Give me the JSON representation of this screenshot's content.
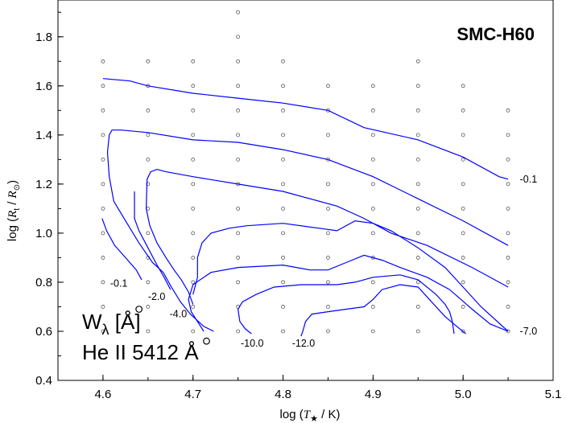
{
  "chart_data": {
    "type": "line",
    "title": "SMC-H60",
    "xlabel_main": "log (",
    "xlabel_var": "T",
    "xlabel_sub": "★",
    "xlabel_tail": " / K)",
    "ylabel_main": "log (",
    "ylabel_var": "R",
    "ylabel_sub": "t",
    "ylabel_mid": " / ",
    "ylabel_var2": "R",
    "ylabel_sub2": "⊙",
    "ylabel_tail": ")",
    "xlim": [
      4.55,
      5.1
    ],
    "ylim": [
      0.4,
      1.95
    ],
    "x_ticks": [
      "4.6",
      "4.7",
      "4.8",
      "4.9",
      "5.0",
      "5.1"
    ],
    "y_ticks": [
      "0.4",
      "0.6",
      "0.8",
      "1.0",
      "1.2",
      "1.4",
      "1.6",
      "1.8"
    ],
    "x_tick_values": [
      4.6,
      4.7,
      4.8,
      4.9,
      5.0,
      5.1
    ],
    "y_tick_values": [
      0.4,
      0.6,
      0.8,
      1.0,
      1.2,
      1.4,
      1.6,
      1.8
    ],
    "line_color": "#0000ff",
    "annotation_line1": "W",
    "annotation_line1_sub": "λ",
    "annotation_line1_tail": " [Å]",
    "annotation_line2": "He II 5412 Å",
    "grid_points": {
      "columns": [
        {
          "x": 4.6,
          "y": [
            0.6,
            0.7,
            0.8,
            0.9,
            1.0,
            1.1,
            1.2,
            1.3,
            1.4,
            1.5,
            1.6,
            1.7
          ]
        },
        {
          "x": 4.65,
          "y": [
            0.6,
            0.7,
            0.8,
            0.9,
            1.0,
            1.1,
            1.2,
            1.3,
            1.4,
            1.5,
            1.6,
            1.7
          ]
        },
        {
          "x": 4.7,
          "y": [
            0.6,
            0.7,
            0.8,
            0.9,
            1.0,
            1.1,
            1.2,
            1.3,
            1.4,
            1.5,
            1.6,
            1.7
          ]
        },
        {
          "x": 4.75,
          "y": [
            0.6,
            0.7,
            0.8,
            0.9,
            1.0,
            1.1,
            1.2,
            1.3,
            1.4,
            1.5,
            1.6,
            1.7,
            1.8,
            1.9
          ]
        },
        {
          "x": 4.8,
          "y": [
            0.6,
            0.7,
            0.8,
            0.9,
            1.0,
            1.1,
            1.2,
            1.3,
            1.4,
            1.5,
            1.6,
            1.7
          ]
        },
        {
          "x": 4.85,
          "y": [
            0.6,
            0.7,
            0.8,
            0.9,
            1.0,
            1.1,
            1.2,
            1.3,
            1.4,
            1.5,
            1.6
          ]
        },
        {
          "x": 4.9,
          "y": [
            0.6,
            0.7,
            0.8,
            0.9,
            1.0,
            1.1,
            1.2,
            1.3,
            1.4,
            1.5,
            1.6
          ]
        },
        {
          "x": 4.95,
          "y": [
            0.6,
            0.7,
            0.8,
            0.9,
            1.0,
            1.1,
            1.2,
            1.3,
            1.4,
            1.5,
            1.6,
            1.7
          ]
        },
        {
          "x": 5.0,
          "y": [
            0.6,
            0.7,
            0.8,
            0.9,
            1.0,
            1.1,
            1.2,
            1.3,
            1.4,
            1.5,
            1.6
          ]
        },
        {
          "x": 5.05,
          "y": [
            0.6,
            0.7,
            0.8,
            0.9,
            1.0,
            1.1,
            1.2,
            1.3,
            1.4,
            1.5
          ]
        }
      ],
      "highlighted": [
        [
          4.64,
          0.69
        ],
        [
          4.715,
          0.56
        ]
      ]
    },
    "series": [
      {
        "label": "-0.1",
        "label_at": [
          5.063,
          1.22
        ],
        "label_anchor": "start",
        "points": [
          [
            4.6,
            1.63
          ],
          [
            4.63,
            1.62
          ],
          [
            4.65,
            1.6
          ],
          [
            4.7,
            1.57
          ],
          [
            4.75,
            1.55
          ],
          [
            4.8,
            1.53
          ],
          [
            4.85,
            1.5
          ],
          [
            4.89,
            1.43
          ],
          [
            4.95,
            1.38
          ],
          [
            5.0,
            1.31
          ],
          [
            5.04,
            1.23
          ],
          [
            5.05,
            1.22
          ]
        ]
      },
      {
        "label": "",
        "points": [
          [
            5.05,
            0.95
          ],
          [
            5.0,
            1.05
          ],
          [
            4.95,
            1.14
          ],
          [
            4.9,
            1.23
          ],
          [
            4.85,
            1.3
          ],
          [
            4.8,
            1.34
          ],
          [
            4.75,
            1.37
          ],
          [
            4.7,
            1.38
          ],
          [
            4.65,
            1.41
          ],
          [
            4.62,
            1.42
          ],
          [
            4.61,
            1.42
          ],
          [
            4.607,
            1.4
          ],
          [
            4.605,
            1.33
          ],
          [
            4.607,
            1.23
          ],
          [
            4.612,
            1.13
          ],
          [
            4.625,
            1.05
          ],
          [
            4.64,
            0.96
          ],
          [
            4.655,
            0.88
          ],
          [
            4.667,
            0.84
          ],
          [
            4.676,
            0.78
          ],
          [
            4.686,
            0.72
          ],
          [
            4.697,
            0.67
          ],
          [
            4.712,
            0.62
          ],
          [
            4.723,
            0.6
          ]
        ]
      },
      {
        "label": "-0.1",
        "label_at": [
          4.608,
          0.795
        ],
        "label_anchor": "start",
        "points": [
          [
            4.599,
            1.06
          ],
          [
            4.604,
            1.01
          ],
          [
            4.613,
            0.95
          ],
          [
            4.625,
            0.9
          ],
          [
            4.637,
            0.85
          ],
          [
            4.643,
            0.81
          ]
        ]
      },
      {
        "label": "-2.0",
        "label_at": [
          4.65,
          0.74
        ],
        "label_anchor": "start",
        "points": [
          [
            4.635,
            1.17
          ],
          [
            4.635,
            1.06
          ],
          [
            4.64,
            1.01
          ],
          [
            4.65,
            0.94
          ],
          [
            4.66,
            0.87
          ],
          [
            4.668,
            0.82
          ],
          [
            4.675,
            0.77
          ]
        ]
      },
      {
        "label": "-4.0",
        "label_at": [
          4.674,
          0.67
        ],
        "label_anchor": "start",
        "points": [
          [
            5.05,
            0.78
          ],
          [
            5.01,
            0.86
          ],
          [
            4.96,
            0.95
          ],
          [
            4.92,
            1.0
          ],
          [
            4.89,
            1.06
          ],
          [
            4.86,
            1.11
          ],
          [
            4.8,
            1.17
          ],
          [
            4.75,
            1.2
          ],
          [
            4.7,
            1.23
          ],
          [
            4.67,
            1.25
          ],
          [
            4.66,
            1.26
          ],
          [
            4.653,
            1.25
          ],
          [
            4.649,
            1.22
          ],
          [
            4.648,
            1.1
          ],
          [
            4.652,
            1.03
          ],
          [
            4.66,
            0.96
          ],
          [
            4.67,
            0.9
          ],
          [
            4.679,
            0.85
          ],
          [
            4.687,
            0.81
          ],
          [
            4.695,
            0.76
          ],
          [
            4.7,
            0.71
          ]
        ]
      },
      {
        "label": "-7.0",
        "label_at": [
          5.063,
          0.6
        ],
        "label_anchor": "start",
        "points": [
          [
            5.05,
            0.6
          ],
          [
            5.03,
            0.63
          ],
          [
            5.01,
            0.69
          ],
          [
            4.985,
            0.77
          ],
          [
            4.96,
            0.82
          ],
          [
            4.93,
            0.86
          ],
          [
            4.91,
            0.89
          ],
          [
            4.89,
            0.91
          ],
          [
            4.87,
            0.88
          ],
          [
            4.85,
            0.85
          ],
          [
            4.83,
            0.85
          ],
          [
            4.8,
            0.87
          ],
          [
            4.75,
            0.86
          ],
          [
            4.72,
            0.84
          ],
          [
            4.7,
            0.79
          ],
          [
            4.695,
            0.73
          ],
          [
            4.698,
            0.68
          ],
          [
            4.705,
            0.64
          ],
          [
            4.712,
            0.6
          ]
        ]
      },
      {
        "label": "",
        "points": [
          [
            4.7,
            0.75
          ],
          [
            4.705,
            0.82
          ],
          [
            4.705,
            0.9
          ],
          [
            4.71,
            0.96
          ],
          [
            4.72,
            1.0
          ],
          [
            4.74,
            1.02
          ],
          [
            4.76,
            1.03
          ],
          [
            4.8,
            1.04
          ],
          [
            4.84,
            1.02
          ],
          [
            4.86,
            1.01
          ],
          [
            4.88,
            1.05
          ],
          [
            4.9,
            1.04
          ],
          [
            4.92,
            1.01
          ],
          [
            4.95,
            0.94
          ],
          [
            4.98,
            0.86
          ],
          [
            5.0,
            0.78
          ],
          [
            5.02,
            0.7
          ],
          [
            5.05,
            0.6
          ]
        ]
      },
      {
        "label": "-10.0",
        "label_at": [
          4.753,
          0.55
        ],
        "label_anchor": "start",
        "points": [
          [
            4.765,
            0.59
          ],
          [
            4.758,
            0.61
          ],
          [
            4.752,
            0.64
          ],
          [
            4.75,
            0.69
          ],
          [
            4.755,
            0.72
          ],
          [
            4.77,
            0.75
          ],
          [
            4.79,
            0.78
          ],
          [
            4.82,
            0.79
          ],
          [
            4.86,
            0.79
          ],
          [
            4.88,
            0.8
          ],
          [
            4.9,
            0.82
          ],
          [
            4.93,
            0.83
          ],
          [
            4.95,
            0.81
          ],
          [
            4.97,
            0.75
          ],
          [
            4.98,
            0.71
          ],
          [
            4.985,
            0.68
          ],
          [
            4.988,
            0.64
          ],
          [
            4.99,
            0.59
          ]
        ]
      },
      {
        "label": "-12.0",
        "label_at": [
          4.81,
          0.55
        ],
        "label_anchor": "start",
        "points": [
          [
            4.82,
            0.58
          ],
          [
            4.822,
            0.6
          ],
          [
            4.825,
            0.64
          ],
          [
            4.832,
            0.67
          ],
          [
            4.85,
            0.68
          ],
          [
            4.87,
            0.69
          ],
          [
            4.89,
            0.7
          ],
          [
            4.9,
            0.73
          ],
          [
            4.91,
            0.77
          ],
          [
            4.93,
            0.79
          ],
          [
            4.95,
            0.78
          ],
          [
            4.965,
            0.72
          ],
          [
            4.98,
            0.66
          ],
          [
            4.993,
            0.62
          ],
          [
            5.003,
            0.59
          ]
        ]
      }
    ]
  }
}
